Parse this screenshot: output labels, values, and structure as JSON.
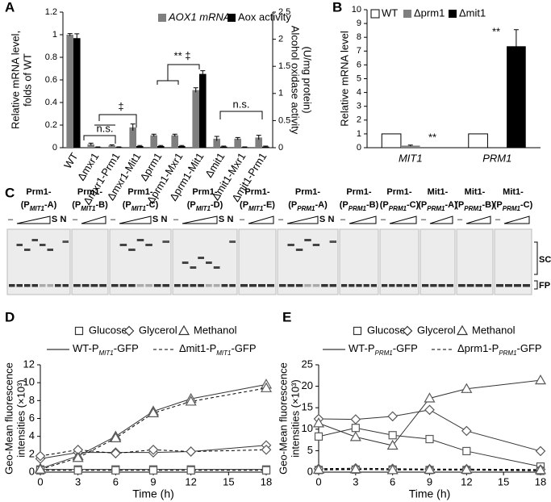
{
  "chart_data": [
    {
      "panel": "A",
      "type": "bar",
      "categories": [
        "WT",
        "Δmxr1",
        "Δmxr1-Prm1",
        "Δmxr1-Mit1",
        "Δprm1",
        "Δprm1-Mxr1",
        "Δprm1-Mit1",
        "Δmit1",
        "Δmit1-Mxr1",
        "Δmit1-Prm1"
      ],
      "series": [
        {
          "name": "AOX1 mRNA",
          "color": "#7f7f7f",
          "values": [
            1,
            0.03,
            0.02,
            0.18,
            0.11,
            0.11,
            0.51,
            0.08,
            0.08,
            0.09
          ],
          "errors": [
            0.01,
            0.01,
            0.005,
            0.03,
            0.01,
            0.01,
            0.02,
            0.02,
            0.01,
            0.02
          ]
        },
        {
          "name": "Aox activity",
          "color": "#000000",
          "axis": "y2",
          "values": [
            2.02,
            0.01,
            0.01,
            0.03,
            0.03,
            0.03,
            1.36,
            0.02,
            0.01,
            0.02
          ],
          "errors": [
            0.08,
            0.005,
            0.005,
            0.01,
            0.01,
            0.01,
            0.06,
            0.01,
            0.005,
            0.01
          ]
        }
      ],
      "ylabel": [
        "Relative mRNA level,",
        "folds of WT"
      ],
      "y2label": [
        "Alcohol oxidase activity",
        "(U/mg protein)"
      ],
      "ylim": [
        0,
        1.2
      ],
      "yticks": [
        0,
        0.2,
        0.4,
        0.6,
        0.8,
        1,
        1.2
      ],
      "y2lim": [
        0,
        2.5
      ],
      "y2ticks": [
        0,
        0.5,
        1,
        1.5,
        2,
        2.5
      ],
      "annotations": [
        "n.s.",
        "‡",
        "** ‡",
        "n.s."
      ]
    },
    {
      "panel": "B",
      "type": "bar",
      "categories": [
        "MIT1",
        "PRM1"
      ],
      "series": [
        {
          "name": "WT",
          "color": "#ffffff",
          "edgecolor": "#000000",
          "values": [
            1,
            1
          ]
        },
        {
          "name": "Δprm1",
          "color": "#7f7f7f",
          "values": [
            0.15,
            null
          ],
          "errors": [
            0.04,
            null
          ]
        },
        {
          "name": "Δmit1",
          "color": "#000000",
          "values": [
            null,
            7.35
          ],
          "errors": [
            null,
            1.2
          ]
        }
      ],
      "ylabel": [
        "Relative mRNA level"
      ],
      "ylim": [
        0,
        10
      ],
      "yticks": [
        0,
        1,
        2,
        3,
        4,
        5,
        6,
        7,
        8,
        9,
        10
      ],
      "annotations": [
        "**",
        "**"
      ]
    },
    {
      "panel": "D",
      "type": "line",
      "x": [
        0,
        3,
        6,
        9,
        12,
        18
      ],
      "xlim": [
        0,
        18
      ],
      "xticks": [
        0,
        3,
        6,
        9,
        12,
        15,
        18
      ],
      "ylim": [
        0,
        12
      ],
      "yticks": [
        0,
        2,
        4,
        6,
        8,
        10,
        12
      ],
      "xlabel": "Time (h)",
      "ylabel": [
        "Geo-Mean fluorescence",
        "intensities (×10³)"
      ],
      "markers": [
        {
          "name": "Glucose",
          "shape": "square"
        },
        {
          "name": "Glycerol",
          "shape": "diamond"
        },
        {
          "name": "Methanol",
          "shape": "triangle"
        }
      ],
      "strains": [
        {
          "name": "WT-P",
          "sub": "MIT1",
          "end": "-GFP",
          "dash": false
        },
        {
          "name": "Δmit1-P",
          "sub": "MIT1",
          "end": "-GFP",
          "dash": true
        }
      ],
      "series": [
        {
          "marker": 0,
          "strain": 0,
          "color": "#595959",
          "values": [
            0.3,
            0.3,
            0.3,
            0.3,
            0.3,
            0.3
          ]
        },
        {
          "marker": 1,
          "strain": 0,
          "color": "#595959",
          "values": [
            1.5,
            2.2,
            2.2,
            2.2,
            2.3,
            3.0
          ]
        },
        {
          "marker": 2,
          "strain": 0,
          "color": "#595959",
          "values": [
            0.4,
            1.8,
            4.0,
            6.8,
            8.2,
            9.8
          ]
        },
        {
          "marker": 0,
          "strain": 1,
          "color": "#595959",
          "values": [
            0.2,
            0.2,
            0.2,
            0.2,
            0.2,
            0.2
          ]
        },
        {
          "marker": 1,
          "strain": 1,
          "color": "#595959",
          "values": [
            1.8,
            2.5,
            2.1,
            2.5,
            2.3,
            2.5
          ]
        },
        {
          "marker": 2,
          "strain": 1,
          "color": "#595959",
          "values": [
            0.3,
            1.6,
            3.8,
            6.6,
            7.9,
            9.4
          ]
        }
      ]
    },
    {
      "panel": "E",
      "type": "line",
      "x": [
        0,
        3,
        6,
        9,
        12,
        18
      ],
      "xlim": [
        0,
        18
      ],
      "xticks": [
        0,
        3,
        6,
        9,
        12,
        15,
        18
      ],
      "ylim": [
        0,
        25
      ],
      "yticks": [
        0,
        5,
        10,
        15,
        20,
        25
      ],
      "xlabel": "Time (h)",
      "ylabel": [
        "Geo-Mean fluorescence",
        "intensities (×10³)"
      ],
      "markers": [
        {
          "name": "Glucose",
          "shape": "square"
        },
        {
          "name": "Glycerol",
          "shape": "diamond"
        },
        {
          "name": "Methanol",
          "shape": "triangle"
        }
      ],
      "strains": [
        {
          "name": "WT-P",
          "sub": "PRM1",
          "end": "-GFP",
          "dash": false
        },
        {
          "name": "Δprm1-P",
          "sub": "PRM1",
          "end": "-GFP",
          "dash": true
        }
      ],
      "series": [
        {
          "marker": 0,
          "strain": 0,
          "color": "#595959",
          "values": [
            8.3,
            10.3,
            8.6,
            7.7,
            4.9,
            1.3
          ]
        },
        {
          "marker": 1,
          "strain": 0,
          "color": "#595959",
          "values": [
            12.4,
            12.3,
            13.0,
            14.5,
            9.6,
            4.9
          ]
        },
        {
          "marker": 2,
          "strain": 0,
          "color": "#595959",
          "values": [
            11.4,
            8.2,
            6.2,
            17.2,
            19.4,
            21.4
          ]
        },
        {
          "marker": 0,
          "strain": 1,
          "color": "#595959",
          "values": [
            0.5,
            0.6,
            0.6,
            0.5,
            0.5,
            0.3
          ]
        },
        {
          "marker": 1,
          "strain": 1,
          "color": "#595959",
          "values": [
            0.8,
            0.9,
            0.8,
            0.7,
            0.7,
            0.6
          ]
        },
        {
          "marker": 2,
          "strain": 1,
          "color": "#595959",
          "values": [
            0.6,
            0.7,
            0.5,
            0.6,
            0.6,
            0.5
          ]
        }
      ]
    }
  ],
  "gel": {
    "panel": "C",
    "control": "–",
    "bands": [
      "SC",
      "FP"
    ],
    "groups": [
      {
        "name": "Prm1-",
        "pre": "(P",
        "sub": "MIT1",
        "post": "-A)",
        "controls": [
          "S",
          "N"
        ]
      },
      {
        "name": "Prm1-",
        "pre": "(P",
        "sub": "MIT1",
        "post": "-B)"
      },
      {
        "name": "Prm1-",
        "pre": "(P",
        "sub": "MIT1",
        "post": "-C)",
        "controls": [
          "S",
          "N"
        ]
      },
      {
        "name": "Prm1-",
        "pre": "(P",
        "sub": "MIT1",
        "post": "-D)",
        "controls": [
          "S",
          "N"
        ]
      },
      {
        "name": "Prm1-",
        "pre": "(P",
        "sub": "MIT1",
        "post": "-E)"
      },
      {
        "name": "Prm1-",
        "pre": "(P",
        "sub": "PRM1",
        "post": "-A)",
        "controls": [
          "S",
          "N"
        ]
      },
      {
        "name": "Prm1-",
        "pre": "(P",
        "sub": "PRM1",
        "post": "-B)"
      },
      {
        "name": "Prm1-",
        "pre": "(P",
        "sub": "PRM1",
        "post": "-C)"
      },
      {
        "name": "Mit1-",
        "pre": "(P",
        "sub": "PRM1",
        "post": "-A)"
      },
      {
        "name": "Mit1-",
        "pre": "(P",
        "sub": "PRM1",
        "post": "-B)"
      },
      {
        "name": "Mit1-",
        "pre": "(P",
        "sub": "PRM1",
        "post": "-C)"
      }
    ]
  }
}
